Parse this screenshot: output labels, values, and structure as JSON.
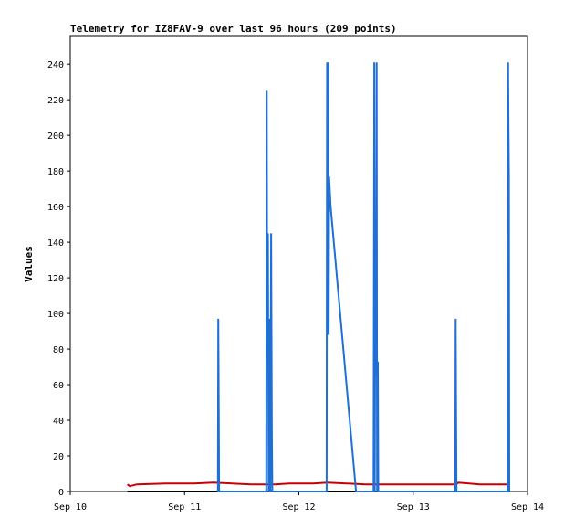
{
  "chart_data": {
    "type": "line",
    "title": "Telemetry for IZ8FAV-9 over last 96 hours (209 points)",
    "xlabel": "",
    "ylabel": "Values",
    "x_tick_labels": [
      "Sep 10",
      "Sep 11",
      "Sep 12",
      "Sep 13",
      "Sep 14"
    ],
    "y_ticks": [
      0,
      20,
      40,
      60,
      80,
      100,
      120,
      140,
      160,
      180,
      200,
      220,
      240
    ],
    "xlim": [
      "Sep 10 00:00",
      "Sep 14 00:00"
    ],
    "ylim": [
      0,
      256
    ],
    "grid": false,
    "legend": "none",
    "series": [
      {
        "color": "#cc0000",
        "points": [
          [
            "Sep 10 12:00",
            4
          ],
          [
            "Sep 10 12:30",
            3
          ],
          [
            "Sep 10 14:00",
            4
          ],
          [
            "Sep 10 20:00",
            4.5
          ],
          [
            "Sep 11 02:00",
            4.5
          ],
          [
            "Sep 11 06:00",
            5
          ],
          [
            "Sep 11 14:00",
            4
          ],
          [
            "Sep 11 19:00",
            4
          ],
          [
            "Sep 11 22:00",
            4.5
          ],
          [
            "Sep 12 03:00",
            4.5
          ],
          [
            "Sep 12 06:00",
            5
          ],
          [
            "Sep 12 14:00",
            4
          ],
          [
            "Sep 13 00:00",
            4
          ],
          [
            "Sep 13 09:00",
            4
          ],
          [
            "Sep 13 09:30",
            5
          ],
          [
            "Sep 13 14:00",
            4
          ],
          [
            "Sep 13 20:00",
            4
          ]
        ]
      },
      {
        "color": "#000000",
        "points": [
          [
            "Sep 10 12:00",
            0
          ],
          [
            "Sep 13 20:00",
            0
          ]
        ]
      },
      {
        "color": "#1f6fd6",
        "points": [
          [
            "Sep 11 07:00",
            0
          ],
          [
            "Sep 11 07:05",
            97
          ],
          [
            "Sep 11 07:10",
            48
          ],
          [
            "Sep 11 07:15",
            0
          ],
          [
            "Sep 11 17:10",
            0
          ],
          [
            "Sep 11 17:15",
            225
          ],
          [
            "Sep 11 17:20",
            108
          ],
          [
            "Sep 11 17:30",
            145
          ],
          [
            "Sep 11 17:40",
            0
          ],
          [
            "Sep 11 17:50",
            97
          ],
          [
            "Sep 11 18:00",
            0
          ],
          [
            "Sep 11 18:10",
            145
          ],
          [
            "Sep 11 18:20",
            32
          ],
          [
            "Sep 11 18:25",
            0
          ],
          [
            "Sep 12 05:50",
            0
          ],
          [
            "Sep 12 05:55",
            241
          ],
          [
            "Sep 12 06:00",
            120
          ],
          [
            "Sep 12 06:10",
            241
          ],
          [
            "Sep 12 06:15",
            88
          ],
          [
            "Sep 12 06:20",
            177
          ],
          [
            "Sep 12 06:40",
            160
          ],
          [
            "Sep 12 12:00",
            0
          ],
          [
            "Sep 12 15:40",
            0
          ],
          [
            "Sep 12 15:45",
            112
          ],
          [
            "Sep 12 15:50",
            241
          ],
          [
            "Sep 12 15:55",
            0
          ],
          [
            "Sep 12 16:05",
            145
          ],
          [
            "Sep 12 16:10",
            65
          ],
          [
            "Sep 12 16:20",
            241
          ],
          [
            "Sep 12 16:25",
            0
          ],
          [
            "Sep 12 16:35",
            73
          ],
          [
            "Sep 12 16:40",
            0
          ],
          [
            "Sep 13 08:50",
            0
          ],
          [
            "Sep 13 08:55",
            97
          ],
          [
            "Sep 13 09:00",
            48
          ],
          [
            "Sep 13 09:05",
            0
          ],
          [
            "Sep 13 19:50",
            0
          ],
          [
            "Sep 13 19:55",
            241
          ],
          [
            "Sep 13 20:00",
            208
          ],
          [
            "Sep 13 20:05",
            176
          ],
          [
            "Sep 13 20:10",
            0
          ]
        ]
      }
    ]
  }
}
